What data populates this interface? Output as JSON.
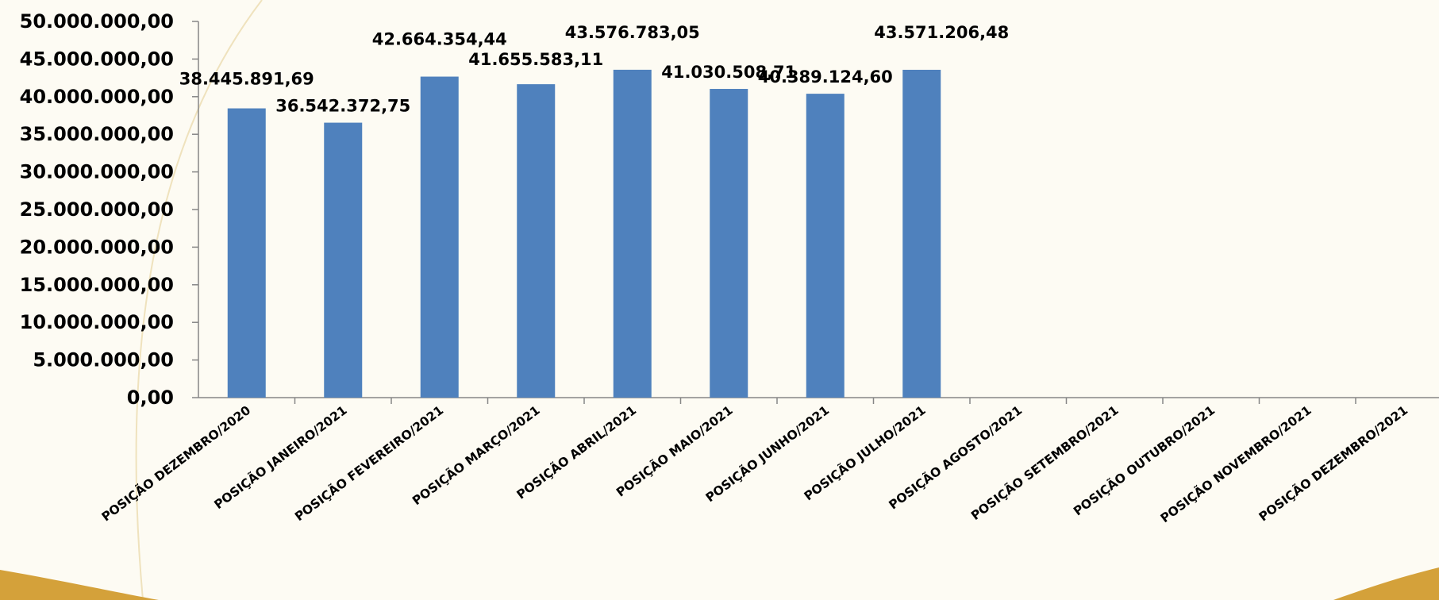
{
  "chart_data": {
    "type": "bar",
    "categories": [
      "POSIÇÃO DEZEMBRO/2020",
      "POSIÇÃO JANEIRO/2021",
      "POSIÇÃO FEVEREIRO/2021",
      "POSIÇÃO MARÇO/2021",
      "POSIÇÃO ABRIL/2021",
      "POSIÇÃO MAIO/2021",
      "POSIÇÃO JUNHO/2021",
      "POSIÇÃO JULHO/2021",
      "POSIÇÃO AGOSTO/2021",
      "POSIÇÃO SETEMBRO/2021",
      "POSIÇÃO OUTUBRO/2021",
      "POSIÇÃO NOVEMBRO/2021",
      "POSIÇÃO DEZEMBRO/2021"
    ],
    "values": [
      38445891.69,
      36542372.75,
      42664354.44,
      41655583.11,
      43576783.05,
      41030508.71,
      40389124.6,
      43571206.48,
      null,
      null,
      null,
      null,
      null
    ],
    "data_labels": [
      "38.445.891,69",
      "36.542.372,75",
      "42.664.354,44",
      "41.655.583,11",
      "43.576.783,05",
      "41.030.508,71",
      "40.389.124,60",
      "43.571.206,48",
      "",
      "",
      "",
      "",
      ""
    ],
    "ylim": [
      0,
      50000000
    ],
    "yticks": [
      "0,00",
      "5.000.000,00",
      "10.000.000,00",
      "15.000.000,00",
      "20.000.000,00",
      "25.000.000,00",
      "30.000.000,00",
      "35.000.000,00",
      "40.000.000,00",
      "45.000.000,00",
      "50.000.000,00"
    ],
    "title": "",
    "xlabel": "",
    "ylabel": "",
    "grid": false,
    "legend": "none",
    "colors": {
      "bar": "#4f81bd",
      "axis": "#868686",
      "background": "#fdfbf3",
      "decoration_gold": "#d4a13a"
    }
  }
}
